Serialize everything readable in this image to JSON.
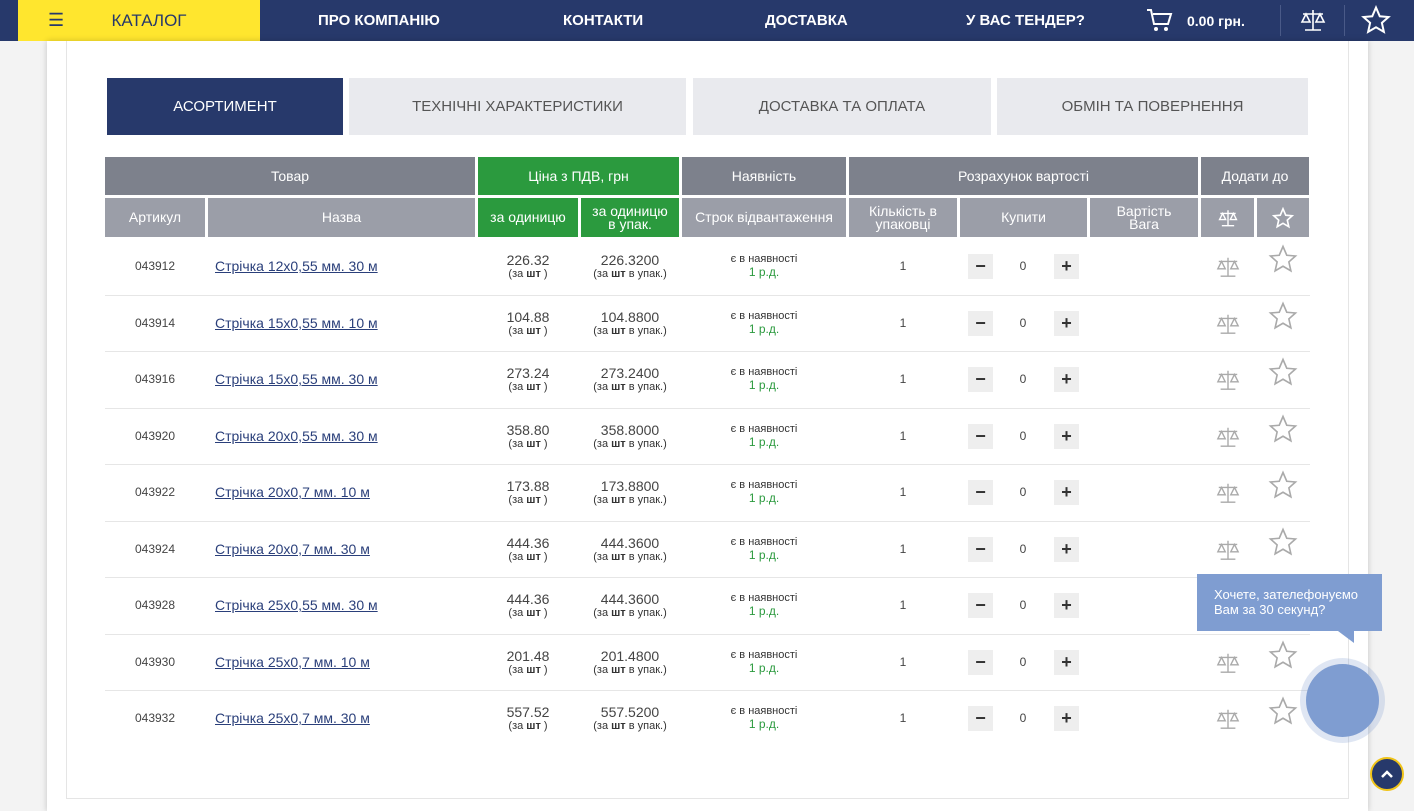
{
  "nav": {
    "catalog": "КАТАЛОГ",
    "links": [
      "ПРО КОМПАНІЮ",
      "КОНТАКТИ",
      "ДОСТАВКА",
      "У ВАС ТЕНДЕР?"
    ],
    "cart": "0.00 грн."
  },
  "tabs": [
    "АСОРТИМЕНТ",
    "ТЕХНІЧНІ ХАРАКТЕРИСТИКИ",
    "ДОСТАВКА ТА ОПЛАТА",
    "ОБМІН ТА ПОВЕРНЕННЯ"
  ],
  "table": {
    "header_groups": [
      "Товар",
      "Ціна з ПДВ, грн",
      "Наявність",
      "Розрахунок вартості",
      "Додати до"
    ],
    "header": [
      "Артикул",
      "Назва",
      "за одиницю",
      "за одиницю в упак.",
      "Строк відвантаження",
      "Кількість в упаковці",
      "Купити",
      "Вартість Вага"
    ],
    "note": {
      "open": "(за",
      "unit": "шт",
      "close": ")",
      "pack": "в упак.)"
    },
    "rows": [
      {
        "article": "043912",
        "name": "Стрічка 12х0,55 мм. 30 м",
        "unit_price": "226.32",
        "pack_price": "226.3200",
        "stock": "є в наявності",
        "lead": "1 р.д.",
        "pack_qty": "1",
        "buy": "0"
      },
      {
        "article": "043914",
        "name": "Стрічка 15х0,55 мм. 10 м",
        "unit_price": "104.88",
        "pack_price": "104.8800",
        "stock": "є в наявності",
        "lead": "1 р.д.",
        "pack_qty": "1",
        "buy": "0"
      },
      {
        "article": "043916",
        "name": "Стрічка 15х0,55 мм. 30 м",
        "unit_price": "273.24",
        "pack_price": "273.2400",
        "stock": "є в наявності",
        "lead": "1 р.д.",
        "pack_qty": "1",
        "buy": "0"
      },
      {
        "article": "043920",
        "name": "Стрічка 20х0,55 мм. 30 м",
        "unit_price": "358.80",
        "pack_price": "358.8000",
        "stock": "є в наявності",
        "lead": "1 р.д.",
        "pack_qty": "1",
        "buy": "0"
      },
      {
        "article": "043922",
        "name": "Стрічка 20х0,7 мм. 10 м",
        "unit_price": "173.88",
        "pack_price": "173.8800",
        "stock": "є в наявності",
        "lead": "1 р.д.",
        "pack_qty": "1",
        "buy": "0"
      },
      {
        "article": "043924",
        "name": "Стрічка 20х0,7 мм. 30 м",
        "unit_price": "444.36",
        "pack_price": "444.3600",
        "stock": "є в наявності",
        "lead": "1 р.д.",
        "pack_qty": "1",
        "buy": "0"
      },
      {
        "article": "043928",
        "name": "Стрічка 25х0,55 мм. 30 м",
        "unit_price": "444.36",
        "pack_price": "444.3600",
        "stock": "є в наявності",
        "lead": "1 р.д.",
        "pack_qty": "1",
        "buy": "0"
      },
      {
        "article": "043930",
        "name": "Стрічка 25х0,7 мм. 10 м",
        "unit_price": "201.48",
        "pack_price": "201.4800",
        "stock": "є в наявності",
        "lead": "1 р.д.",
        "pack_qty": "1",
        "buy": "0"
      },
      {
        "article": "043932",
        "name": "Стрічка 25х0,7 мм. 30 м",
        "unit_price": "557.52",
        "pack_price": "557.5200",
        "stock": "є в наявності",
        "lead": "1 р.д.",
        "pack_qty": "1",
        "buy": "0"
      }
    ]
  },
  "callback": "Хочете, зателефонуємо Вам за 30 секунд?"
}
